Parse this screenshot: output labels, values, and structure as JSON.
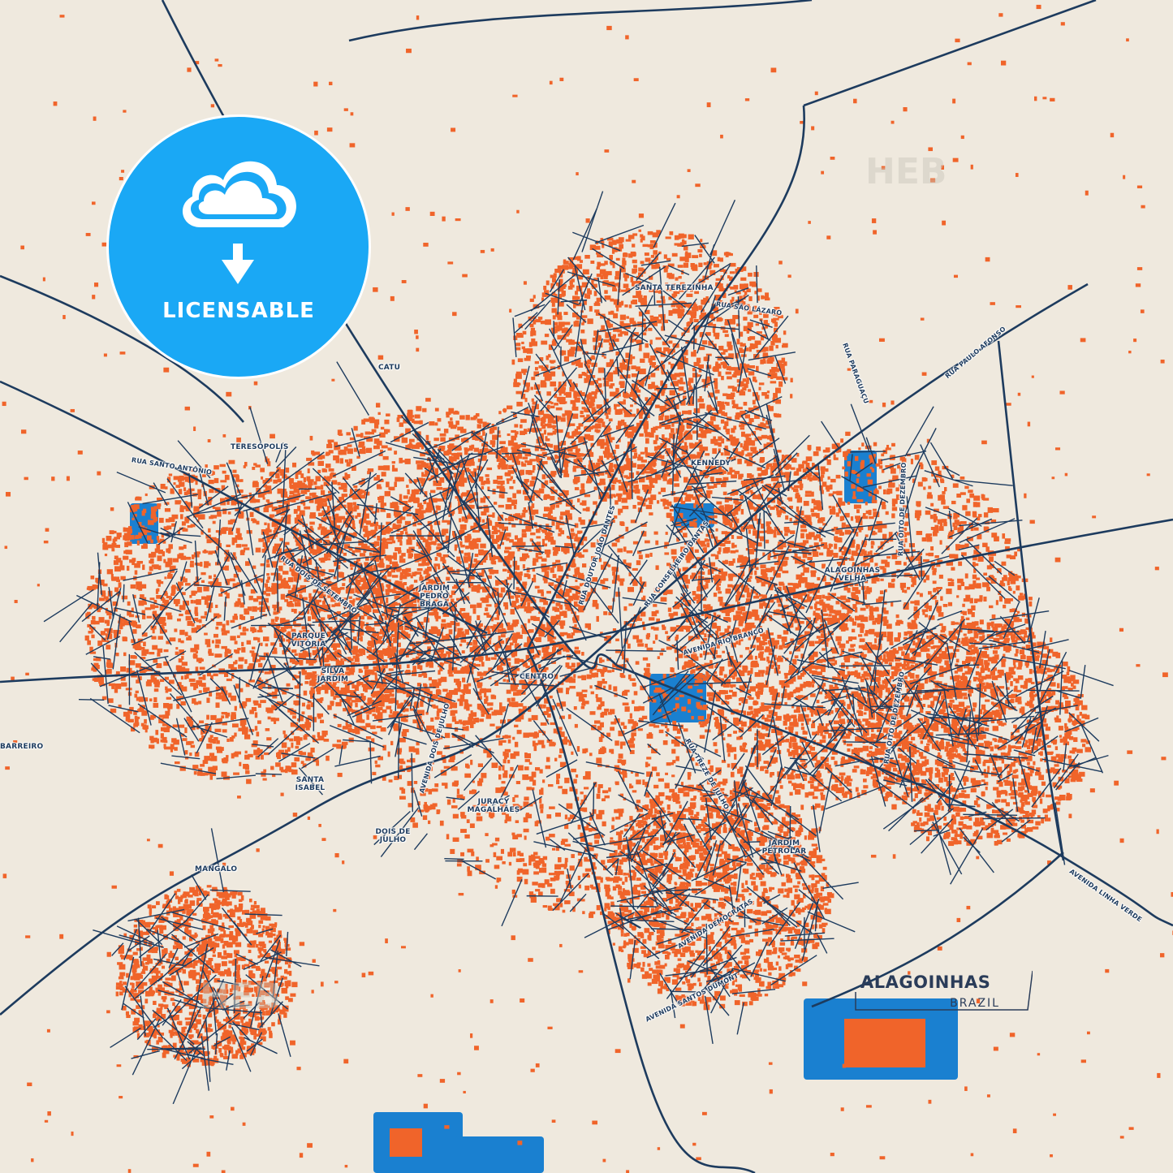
{
  "title": {
    "city": "ALAGOINHAS",
    "country": "BRAZIL"
  },
  "badge": {
    "label": "LICENSABLE",
    "icon": "cloud-download-icon"
  },
  "watermark": "HEB",
  "colors": {
    "background": "#efe9de",
    "roads": "#1d3b5e",
    "buildings": "#f0642a",
    "water_landuse": "#1a80d0",
    "light_blue": "#a8d8f0",
    "badge": "#1aa8f5"
  },
  "neighborhoods": [
    "SANTA TEREZINHA",
    "CATU",
    "KENNEDY",
    "TERESÓPOLIS",
    "JARDIM PEDRO BRAGA",
    "ALAGOINHAS VELHA",
    "PARQUE VITÓRIA",
    "SILVA JARDIM",
    "CENTRO",
    "BARREIRO",
    "SANTA ISABEL",
    "JURACY MAGALHÃES",
    "DOIS DE JULHO",
    "JARDIM PETROLAR",
    "MANGALO"
  ],
  "streets": [
    "RUA SÃO LÁZARO",
    "RUA PARAGUAÇU",
    "RUA PAULO AFONSO",
    "RUA SANTO ANTÔNIO",
    "RUA DOUTOR JOÃO DANTES",
    "RUA CONSELHEIRO DANTAS",
    "RUA OITO DE DEZEMBRO",
    "RUA DOIS DE SETEMBRO",
    "AVENIDA RIO BRANCO",
    "AVENIDA DOIS DE JULHO",
    "RUA TREZE DE JULHO",
    "AVENIDA LINHA VERDE",
    "AVENIDA DEMOCRATAS",
    "AVENIDA SANTOS DUMONT",
    "RUA OITO DE DEZEMBRO"
  ]
}
